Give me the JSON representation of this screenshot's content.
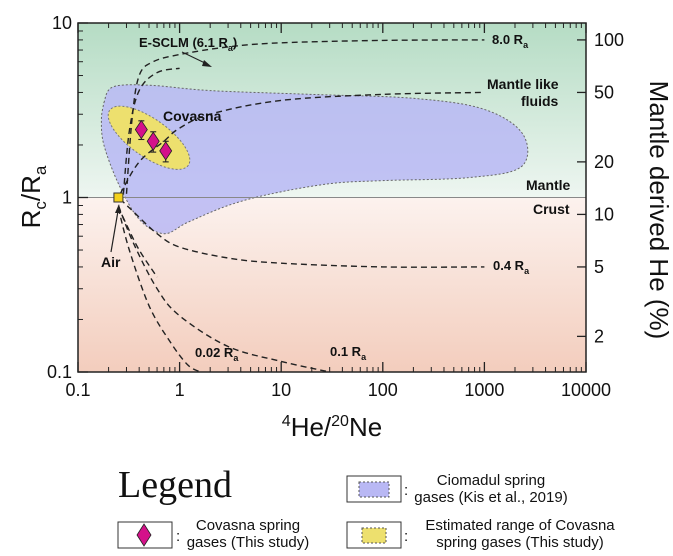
{
  "chart_data": {
    "type": "line",
    "xlabel": {
      "sup": "4",
      "main1": "He/",
      "sup2": "20",
      "main2": "Ne"
    },
    "ylabel": {
      "main1": "R",
      "sub1": "c",
      "main2": "/R",
      "sub2": "a"
    },
    "y2label": "Mantle derived He (%)",
    "xscale": "log",
    "yscale": "log",
    "xlim": [
      0.1,
      10000
    ],
    "ylim": [
      0.1,
      10
    ],
    "xticks": [
      "0.1",
      "1",
      "10",
      "100",
      "1000",
      "10000"
    ],
    "yticks": [
      "0.1",
      "1",
      "10"
    ],
    "y2ticks": [
      {
        "label": "2",
        "rc": 0.16
      },
      {
        "label": "5",
        "rc": 0.4
      },
      {
        "label": "10",
        "rc": 0.8
      },
      {
        "label": "20",
        "rc": 1.6
      },
      {
        "label": "50",
        "rc": 4.0
      },
      {
        "label": "100",
        "rc": 8.0
      }
    ],
    "mixing_curves": [
      {
        "label": "8.0 R",
        "label_sub": "a",
        "points": [
          [
            0.3,
            1.05
          ],
          [
            0.34,
            2.8
          ],
          [
            0.4,
            5.0
          ],
          [
            0.55,
            6.0
          ],
          [
            1,
            6.6
          ],
          [
            3,
            7.3
          ],
          [
            10,
            7.7
          ],
          [
            100,
            7.95
          ],
          [
            1000,
            8.0
          ]
        ]
      },
      {
        "label": "E-SCLM (6.1 R",
        "label_sub": "a",
        "label_end": ")",
        "points": [
          [
            0.28,
            1.05
          ],
          [
            0.32,
            2.4
          ],
          [
            0.4,
            4.1
          ],
          [
            0.6,
            5.2
          ],
          [
            1,
            5.5
          ]
        ]
      },
      {
        "label": "0.4 R",
        "label_sub": "a",
        "points": [
          [
            0.26,
            0.98
          ],
          [
            0.35,
            0.83
          ],
          [
            0.6,
            0.62
          ],
          [
            1,
            0.52
          ],
          [
            3,
            0.45
          ],
          [
            10,
            0.42
          ],
          [
            100,
            0.4
          ],
          [
            1000,
            0.4
          ]
        ]
      },
      {
        "label": "0.1 R",
        "label_sub": "a",
        "points": [
          [
            0.25,
            0.9
          ],
          [
            0.35,
            0.55
          ],
          [
            0.6,
            0.3
          ],
          [
            1,
            0.21
          ],
          [
            3,
            0.14
          ],
          [
            10,
            0.115
          ],
          [
            30,
            0.1
          ]
        ]
      },
      {
        "label": "0.02 R",
        "label_sub": "a",
        "points": [
          [
            0.25,
            0.87
          ],
          [
            0.32,
            0.5
          ],
          [
            0.5,
            0.24
          ],
          [
            0.8,
            0.15
          ],
          [
            1.2,
            0.11
          ],
          [
            1.6,
            0.1
          ]
        ]
      },
      {
        "label": "",
        "points": [
          [
            0.26,
            1.05
          ],
          [
            0.4,
            1.6
          ],
          [
            0.7,
            2.1
          ],
          [
            1,
            2.5
          ],
          [
            2,
            3.0
          ],
          [
            10,
            3.6
          ],
          [
            100,
            3.9
          ],
          [
            1000,
            4.0
          ]
        ]
      }
    ],
    "mixing_curve_extra": {
      "points": [
        [
          0.25,
          0.88
        ],
        [
          0.3,
          0.7
        ],
        [
          0.4,
          0.5
        ],
        [
          0.6,
          0.35
        ]
      ]
    },
    "series": [
      {
        "name": "Covasna spring gases (This study)",
        "type": "scatter",
        "x": [
          0.42,
          0.55,
          0.73
        ],
        "y": [
          2.45,
          2.1,
          1.85
        ],
        "yerr": [
          0.3,
          0.28,
          0.25
        ],
        "color": "#d4118a"
      }
    ],
    "regions": [
      {
        "name": "Ciomadul spring gases (Kis et al., 2019)",
        "color": "#b9b8f4"
      },
      {
        "name": "Estimated range of Covasna spring gases (This study)",
        "color": "#ede06e"
      }
    ],
    "air_point": {
      "label": "Air",
      "x": 0.25,
      "y": 1.0
    },
    "annotations": {
      "covasna": "Covasna",
      "mantle_like": [
        "Mantle like",
        "fluids"
      ],
      "mantle": "Mantle",
      "crust": "Crust"
    },
    "reference_line_y": 1.0
  },
  "legend": {
    "title": "Legend",
    "items": [
      {
        "text": [
          "Ciomadul spring",
          "gases (Kis et al., 2019)"
        ]
      },
      {
        "text": [
          "Covasna spring",
          "gases (This study)"
        ]
      },
      {
        "text": [
          "Estimated range of Covasna",
          "spring gases (This study)"
        ]
      }
    ],
    "colon": ":"
  },
  "colors": {
    "mantle_top": "#b5dcc4",
    "mantle_mid": "#e8f3ed",
    "crust_mid": "#fbeeea",
    "crust_bottom": "#f3cdbd",
    "diamond": "#d4118a",
    "air": "#f4d21c"
  }
}
